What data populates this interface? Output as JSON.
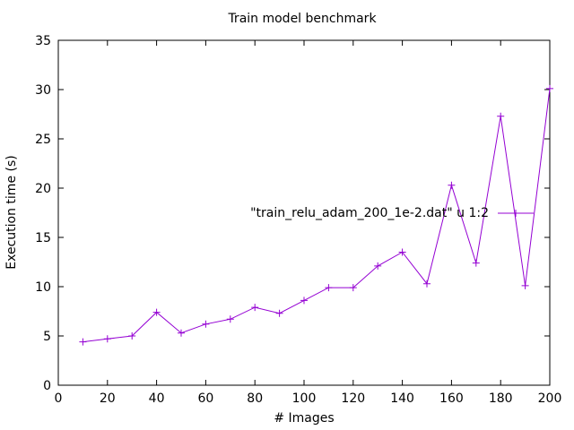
{
  "chart_data": {
    "type": "line",
    "title": "Train model benchmark",
    "xlabel": "# Images",
    "ylabel": "Execution time (s)",
    "xlim": [
      0,
      200
    ],
    "ylim": [
      0,
      35
    ],
    "x_ticks": [
      0,
      20,
      40,
      60,
      80,
      100,
      120,
      140,
      160,
      180,
      200
    ],
    "y_ticks": [
      0,
      5,
      10,
      15,
      20,
      25,
      30,
      35
    ],
    "grid": false,
    "legend_position": "center-right",
    "series": [
      {
        "name": "\"train_relu_adam_200_1e-2.dat\" u 1:2",
        "color": "#9400d3",
        "marker": "plus",
        "x": [
          10,
          20,
          30,
          40,
          50,
          60,
          70,
          80,
          90,
          100,
          110,
          120,
          130,
          140,
          150,
          160,
          170,
          180,
          190,
          200
        ],
        "y": [
          4.4,
          4.7,
          5.0,
          7.4,
          5.3,
          6.2,
          6.7,
          7.9,
          7.3,
          8.6,
          9.9,
          9.9,
          12.1,
          13.5,
          10.3,
          20.3,
          12.4,
          27.3,
          10.1,
          30.1
        ]
      }
    ]
  }
}
